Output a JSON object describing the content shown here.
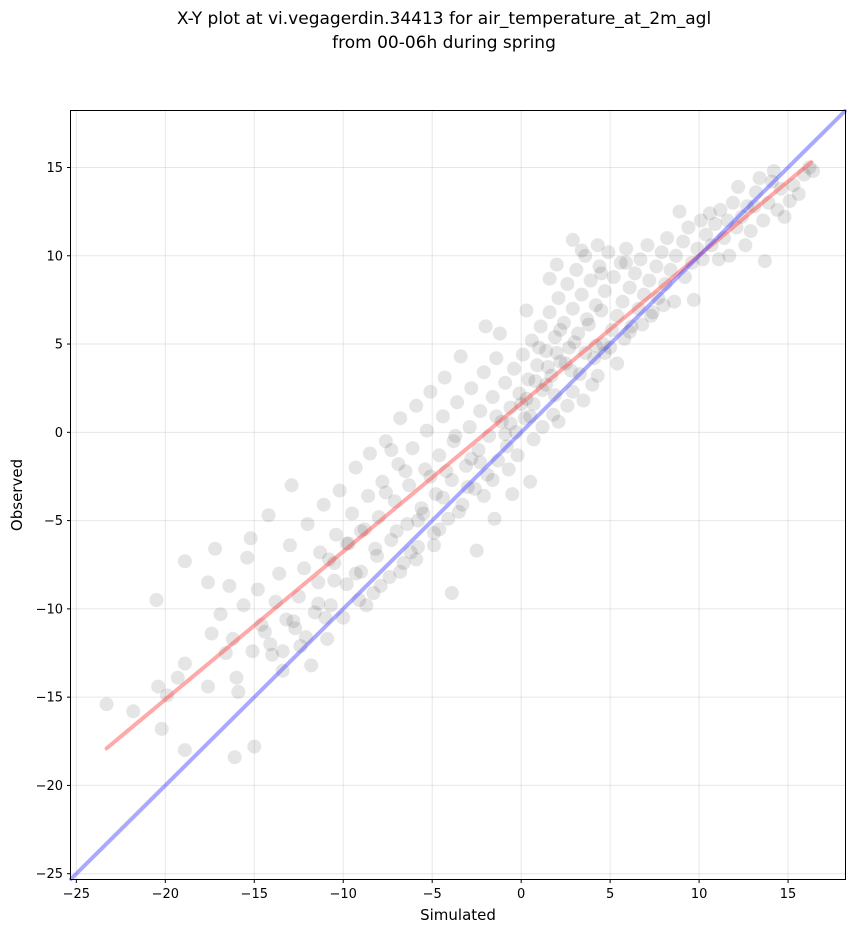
{
  "chart_data": {
    "type": "scatter",
    "title_lines": [
      "X-Y plot at vi.vegagerdin.34413 for air_temperature_at_2m_agl",
      "from 00-06h during spring"
    ],
    "xlabel": "Simulated",
    "ylabel": "Observed",
    "xlim": [
      -25.3,
      18.2
    ],
    "ylim": [
      -25.3,
      18.2
    ],
    "xticks": [
      -25,
      -20,
      -15,
      -10,
      -5,
      0,
      5,
      10,
      15
    ],
    "yticks": [
      -25,
      -20,
      -15,
      -10,
      -5,
      0,
      5,
      10,
      15
    ],
    "grid": true,
    "point_color": "#000000",
    "point_opacity": 0.1,
    "points": [
      [
        -23.3,
        -15.4
      ],
      [
        -21.8,
        -15.8
      ],
      [
        -20.4,
        -14.4
      ],
      [
        -20.2,
        -16.8
      ],
      [
        -20.5,
        -9.5
      ],
      [
        -19.9,
        -14.9
      ],
      [
        -19.3,
        -13.9
      ],
      [
        -18.9,
        -13.1
      ],
      [
        -18.9,
        -7.3
      ],
      [
        -18.9,
        -18.0
      ],
      [
        -17.6,
        -14.4
      ],
      [
        -17.6,
        -8.5
      ],
      [
        -17.4,
        -11.4
      ],
      [
        -17.2,
        -6.6
      ],
      [
        -16.9,
        -10.3
      ],
      [
        -16.6,
        -12.5
      ],
      [
        -16.4,
        -8.7
      ],
      [
        -16.2,
        -11.7
      ],
      [
        -16.1,
        -18.4
      ],
      [
        -16.0,
        -13.9
      ],
      [
        -15.9,
        -14.7
      ],
      [
        -15.6,
        -9.8
      ],
      [
        -15.4,
        -7.1
      ],
      [
        -15.2,
        -6.0
      ],
      [
        -15.1,
        -12.4
      ],
      [
        -15.0,
        -17.8
      ],
      [
        -14.8,
        -8.9
      ],
      [
        -14.6,
        -10.9
      ],
      [
        -14.4,
        -11.3
      ],
      [
        -14.2,
        -4.7
      ],
      [
        -14.0,
        -12.6
      ],
      [
        -13.8,
        -9.6
      ],
      [
        -13.6,
        -8.0
      ],
      [
        -13.4,
        -13.5
      ],
      [
        -13.2,
        -10.6
      ],
      [
        -13.0,
        -6.4
      ],
      [
        -12.9,
        -3.0
      ],
      [
        -12.7,
        -11.1
      ],
      [
        -12.5,
        -9.3
      ],
      [
        -12.4,
        -12.1
      ],
      [
        -12.2,
        -7.7
      ],
      [
        -12.0,
        -5.2
      ],
      [
        -11.8,
        -13.2
      ],
      [
        -11.6,
        -10.2
      ],
      [
        -11.4,
        -8.5
      ],
      [
        -11.3,
        -6.8
      ],
      [
        -11.1,
        -4.1
      ],
      [
        -10.9,
        -11.7
      ],
      [
        -10.7,
        -9.8
      ],
      [
        -10.5,
        -7.4
      ],
      [
        -10.4,
        -5.8
      ],
      [
        -10.2,
        -3.3
      ],
      [
        -10.0,
        -10.5
      ],
      [
        -9.8,
        -8.6
      ],
      [
        -9.7,
        -6.3
      ],
      [
        -9.5,
        -4.6
      ],
      [
        -9.3,
        -2.0
      ],
      [
        -9.1,
        -9.5
      ],
      [
        -9.0,
        -7.9
      ],
      [
        -8.8,
        -5.5
      ],
      [
        -8.6,
        -3.6
      ],
      [
        -8.5,
        -1.2
      ],
      [
        -8.3,
        -9.1
      ],
      [
        -8.1,
        -7.0
      ],
      [
        -8.0,
        -4.8
      ],
      [
        -7.8,
        -2.8
      ],
      [
        -7.6,
        -0.5
      ],
      [
        -7.4,
        -8.2
      ],
      [
        -7.3,
        -6.1
      ],
      [
        -7.1,
        -3.9
      ],
      [
        -6.9,
        -1.8
      ],
      [
        -6.8,
        0.8
      ],
      [
        -6.6,
        -7.4
      ],
      [
        -6.4,
        -5.2
      ],
      [
        -6.3,
        -3.0
      ],
      [
        -6.1,
        -0.9
      ],
      [
        -5.9,
        1.5
      ],
      [
        -5.8,
        -6.5
      ],
      [
        -5.6,
        -4.3
      ],
      [
        -5.4,
        -2.1
      ],
      [
        -5.3,
        0.1
      ],
      [
        -5.1,
        2.3
      ],
      [
        -4.9,
        -5.7
      ],
      [
        -4.8,
        -3.5
      ],
      [
        -4.6,
        -1.3
      ],
      [
        -4.4,
        0.9
      ],
      [
        -4.3,
        3.1
      ],
      [
        -4.1,
        -4.9
      ],
      [
        -3.9,
        -2.7
      ],
      [
        -3.8,
        -0.5
      ],
      [
        -3.6,
        1.7
      ],
      [
        -3.4,
        4.3
      ],
      [
        -3.3,
        -4.1
      ],
      [
        -3.1,
        -1.9
      ],
      [
        -2.9,
        0.3
      ],
      [
        -2.8,
        2.5
      ],
      [
        -2.6,
        -3.2
      ],
      [
        -2.4,
        -1.0
      ],
      [
        -2.3,
        1.2
      ],
      [
        -2.1,
        3.4
      ],
      [
        -1.9,
        -2.4
      ],
      [
        -1.8,
        -0.2
      ],
      [
        -1.6,
        2.0
      ],
      [
        -1.4,
        4.2
      ],
      [
        -1.3,
        -1.6
      ],
      [
        -1.1,
        0.6
      ],
      [
        -0.9,
        2.8
      ],
      [
        -0.8,
        -0.8
      ],
      [
        -0.6,
        1.4
      ],
      [
        -0.4,
        3.6
      ],
      [
        -0.3,
        0.0
      ],
      [
        -0.1,
        2.2
      ],
      [
        0.1,
        4.4
      ],
      [
        0.2,
        0.8
      ],
      [
        0.4,
        3.0
      ],
      [
        0.6,
        5.2
      ],
      [
        0.7,
        1.6
      ],
      [
        0.9,
        3.8
      ],
      [
        1.1,
        6.0
      ],
      [
        1.2,
        2.4
      ],
      [
        1.4,
        4.6
      ],
      [
        1.6,
        6.8
      ],
      [
        1.7,
        3.2
      ],
      [
        1.9,
        5.4
      ],
      [
        2.1,
        7.6
      ],
      [
        2.2,
        4.0
      ],
      [
        2.4,
        6.2
      ],
      [
        2.6,
        8.4
      ],
      [
        2.7,
        4.8
      ],
      [
        2.9,
        7.0
      ],
      [
        3.1,
        9.2
      ],
      [
        3.2,
        5.6
      ],
      [
        3.4,
        7.8
      ],
      [
        3.6,
        10.0
      ],
      [
        3.7,
        6.4
      ],
      [
        3.9,
        8.6
      ],
      [
        4.1,
        4.2
      ],
      [
        4.2,
        7.2
      ],
      [
        4.4,
        9.4
      ],
      [
        4.6,
        5.0
      ],
      [
        4.7,
        8.0
      ],
      [
        4.9,
        10.2
      ],
      [
        5.1,
        5.8
      ],
      [
        5.2,
        8.8
      ],
      [
        5.4,
        6.6
      ],
      [
        5.6,
        9.6
      ],
      [
        5.7,
        7.4
      ],
      [
        5.9,
        10.4
      ],
      [
        6.1,
        8.2
      ],
      [
        6.2,
        6.0
      ],
      [
        6.4,
        9.0
      ],
      [
        6.6,
        7.0
      ],
      [
        6.7,
        9.8
      ],
      [
        6.9,
        7.8
      ],
      [
        7.1,
        10.6
      ],
      [
        7.2,
        8.6
      ],
      [
        7.4,
        6.8
      ],
      [
        7.6,
        9.4
      ],
      [
        7.7,
        7.6
      ],
      [
        7.9,
        10.2
      ],
      [
        8.1,
        8.4
      ],
      [
        8.2,
        11.0
      ],
      [
        8.4,
        9.2
      ],
      [
        8.6,
        7.4
      ],
      [
        8.7,
        10.0
      ],
      [
        8.9,
        12.5
      ],
      [
        9.1,
        10.8
      ],
      [
        9.2,
        8.8
      ],
      [
        9.4,
        11.6
      ],
      [
        9.6,
        9.6
      ],
      [
        9.7,
        7.5
      ],
      [
        9.9,
        10.4
      ],
      [
        10.1,
        12.0
      ],
      [
        10.2,
        9.8
      ],
      [
        10.4,
        11.2
      ],
      [
        10.6,
        12.4
      ],
      [
        10.7,
        10.6
      ],
      [
        10.9,
        11.8
      ],
      [
        11.1,
        9.8
      ],
      [
        11.2,
        12.6
      ],
      [
        11.4,
        11.0
      ],
      [
        11.6,
        12.0
      ],
      [
        11.7,
        10.0
      ],
      [
        11.9,
        13.0
      ],
      [
        12.1,
        11.6
      ],
      [
        12.2,
        13.9
      ],
      [
        12.4,
        12.2
      ],
      [
        12.6,
        10.6
      ],
      [
        12.7,
        12.8
      ],
      [
        12.9,
        11.4
      ],
      [
        13.1,
        12.8
      ],
      [
        13.2,
        13.6
      ],
      [
        13.4,
        14.4
      ],
      [
        13.6,
        12.0
      ],
      [
        13.7,
        9.7
      ],
      [
        13.9,
        13.0
      ],
      [
        14.1,
        14.2
      ],
      [
        14.2,
        14.8
      ],
      [
        14.4,
        12.6
      ],
      [
        14.6,
        13.8
      ],
      [
        14.8,
        12.2
      ],
      [
        15.1,
        13.1
      ],
      [
        15.3,
        14.0
      ],
      [
        15.6,
        13.5
      ],
      [
        15.9,
        14.6
      ],
      [
        16.2,
        15.0
      ],
      [
        16.4,
        14.8
      ],
      [
        -7.3,
        -1.0
      ],
      [
        -6.5,
        -2.2
      ],
      [
        -5.8,
        -5.0
      ],
      [
        -5.1,
        -2.5
      ],
      [
        -4.4,
        -3.7
      ],
      [
        -3.7,
        -0.2
      ],
      [
        -3.0,
        -3.1
      ],
      [
        -2.3,
        -1.7
      ],
      [
        -1.6,
        -2.7
      ],
      [
        -0.9,
        -0.1
      ],
      [
        -0.2,
        -1.3
      ],
      [
        0.5,
        0.9
      ],
      [
        1.2,
        0.3
      ],
      [
        1.9,
        2.1
      ],
      [
        2.6,
        1.5
      ],
      [
        3.3,
        3.3
      ],
      [
        4.0,
        2.7
      ],
      [
        4.7,
        4.5
      ],
      [
        5.4,
        3.9
      ],
      [
        6.1,
        5.7
      ],
      [
        -9.0,
        -5.6
      ],
      [
        -8.2,
        -6.6
      ],
      [
        -7.6,
        -3.4
      ],
      [
        -7.0,
        -5.6
      ],
      [
        -6.2,
        -6.8
      ],
      [
        -5.5,
        -4.6
      ],
      [
        -4.9,
        -6.4
      ],
      [
        -4.2,
        -2.2
      ],
      [
        -3.5,
        -4.5
      ],
      [
        -2.8,
        -1.5
      ],
      [
        -2.1,
        -3.6
      ],
      [
        -1.4,
        0.9
      ],
      [
        -0.7,
        -2.1
      ],
      [
        0.0,
        1.6
      ],
      [
        0.7,
        -0.4
      ],
      [
        1.4,
        2.7
      ],
      [
        2.1,
        0.6
      ],
      [
        2.8,
        3.5
      ],
      [
        3.5,
        1.8
      ],
      [
        4.2,
        4.9
      ],
      [
        -10.5,
        -8.4
      ],
      [
        -9.8,
        -6.3
      ],
      [
        -11.4,
        -9.7
      ],
      [
        -12.1,
        -11.6
      ],
      [
        -13.4,
        -12.4
      ],
      [
        -12.8,
        -10.7
      ],
      [
        -11.0,
        -10.5
      ],
      [
        -14.1,
        -12.0
      ],
      [
        -9.3,
        -8.0
      ],
      [
        -10.8,
        -7.2
      ],
      [
        -8.7,
        -9.8
      ],
      [
        -7.9,
        -8.7
      ],
      [
        -6.8,
        -7.9
      ],
      [
        -5.9,
        -7.2
      ],
      [
        -4.6,
        -5.5
      ],
      [
        -3.9,
        -9.1
      ],
      [
        -2.5,
        -6.7
      ],
      [
        -1.5,
        -4.9
      ],
      [
        -0.5,
        -3.5
      ],
      [
        0.5,
        -2.8
      ],
      [
        2.0,
        4.5
      ],
      [
        2.5,
        3.9
      ],
      [
        3.0,
        5.1
      ],
      [
        1.5,
        3.7
      ],
      [
        0.8,
        2.9
      ],
      [
        3.8,
        6.1
      ],
      [
        4.5,
        6.9
      ],
      [
        2.2,
        5.8
      ],
      [
        1.0,
        4.8
      ],
      [
        3.6,
        4.5
      ],
      [
        0.3,
        1.9
      ],
      [
        -0.6,
        0.5
      ],
      [
        1.8,
        1.0
      ],
      [
        2.9,
        2.3
      ],
      [
        4.3,
        3.2
      ],
      [
        5.0,
        4.8
      ],
      [
        5.8,
        5.3
      ],
      [
        6.8,
        6.1
      ],
      [
        7.3,
        6.6
      ],
      [
        8.0,
        7.2
      ],
      [
        -2.0,
        6.0
      ],
      [
        -1.2,
        5.6
      ],
      [
        0.3,
        6.9
      ],
      [
        1.6,
        8.7
      ],
      [
        2.0,
        9.5
      ],
      [
        2.9,
        10.9
      ],
      [
        3.4,
        10.3
      ],
      [
        4.3,
        10.6
      ],
      [
        4.5,
        9.0
      ],
      [
        5.9,
        9.6
      ]
    ],
    "lines": [
      {
        "color": "#ff4040",
        "opacity": 0.45,
        "from": [
          -23.3,
          -17.9
        ],
        "to": [
          16.3,
          15.3
        ]
      },
      {
        "color": "#4040ff",
        "opacity": 0.45,
        "from": [
          -25.3,
          -25.3
        ],
        "to": [
          18.2,
          18.2
        ]
      }
    ]
  }
}
